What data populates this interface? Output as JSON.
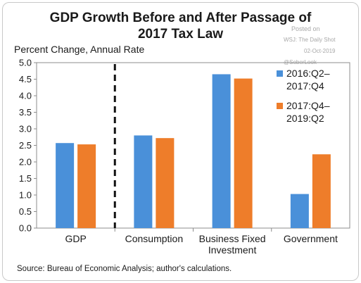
{
  "chart_data": {
    "type": "bar",
    "title_lines": [
      "GDP Growth Before and After Passage of",
      "2017 Tax Law"
    ],
    "ylabel": "Percent Change, Annual Rate",
    "xlabel": "",
    "ylim": [
      0,
      5
    ],
    "yticks": [
      "0.0",
      "0.5",
      "1.0",
      "1.5",
      "2.0",
      "2.5",
      "3.0",
      "3.5",
      "4.0",
      "4.5",
      "5.0"
    ],
    "categories": [
      [
        "GDP"
      ],
      [
        "Consumption"
      ],
      [
        "Business Fixed",
        "Investment"
      ],
      [
        "Government"
      ]
    ],
    "series": [
      {
        "name_lines": [
          "2016:Q2–",
          "2017:Q4"
        ],
        "color": "#4a90d9",
        "values": [
          2.57,
          2.8,
          4.65,
          1.03
        ]
      },
      {
        "name_lines": [
          "2017:Q4–",
          "2019:Q2"
        ],
        "color": "#ee7d2a",
        "values": [
          2.53,
          2.72,
          4.52,
          2.23
        ]
      }
    ],
    "legend_position": "top-right",
    "grid": false,
    "divider_after_category": 0,
    "source": "Source: Bureau of Economic Analysis; author's calculations."
  },
  "watermark": {
    "lines": [
      "Posted on",
      "WSJ: The Daily Shot",
      "02-Oct-2019",
      "@SoberLook"
    ]
  }
}
